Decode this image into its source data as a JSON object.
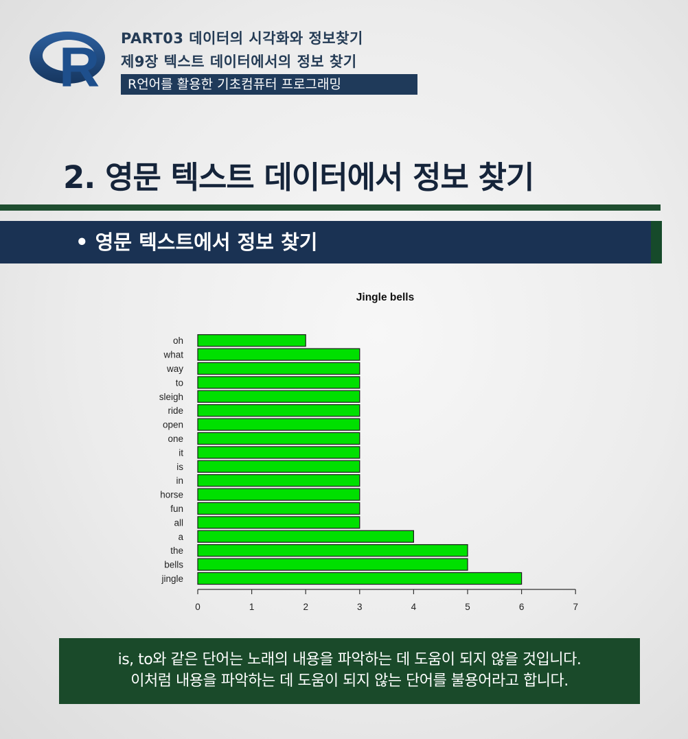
{
  "header": {
    "logo_letter": "R",
    "line1": "PART03 데이터의 시각화와 정보찾기",
    "line2": "제9장 텍스트 데이터에서의 정보 찾기",
    "course": "R언어를 활용한 기초컴퓨터 프로그래밍"
  },
  "page_title": "2. 영문 텍스트 데이터에서 정보 찾기",
  "section": {
    "bullet": "•",
    "title": "영문 텍스트에서 정보 찾기"
  },
  "chart_data": {
    "type": "bar",
    "orientation": "horizontal",
    "title": "Jingle bells",
    "categories": [
      "jingle",
      "bells",
      "the",
      "a",
      "all",
      "fun",
      "horse",
      "in",
      "is",
      "it",
      "one",
      "open",
      "ride",
      "sleigh",
      "to",
      "way",
      "what",
      "oh"
    ],
    "values": [
      6,
      5,
      5,
      4,
      3,
      3,
      3,
      3,
      3,
      3,
      3,
      3,
      3,
      3,
      3,
      3,
      3,
      2
    ],
    "xlim": [
      0,
      7
    ],
    "xticks": [
      0,
      1,
      2,
      3,
      4,
      5,
      6,
      7
    ],
    "bar_color": "#00e000",
    "grid": false
  },
  "caption": {
    "line1": "is, to와 같은 단어는 노래의 내용을 파악하는 데 도움이 되지 않을 것입니다.",
    "line2": "이처럼 내용을 파악하는 데 도움이 되지 않는 단어를 불용어라고 합니다."
  }
}
